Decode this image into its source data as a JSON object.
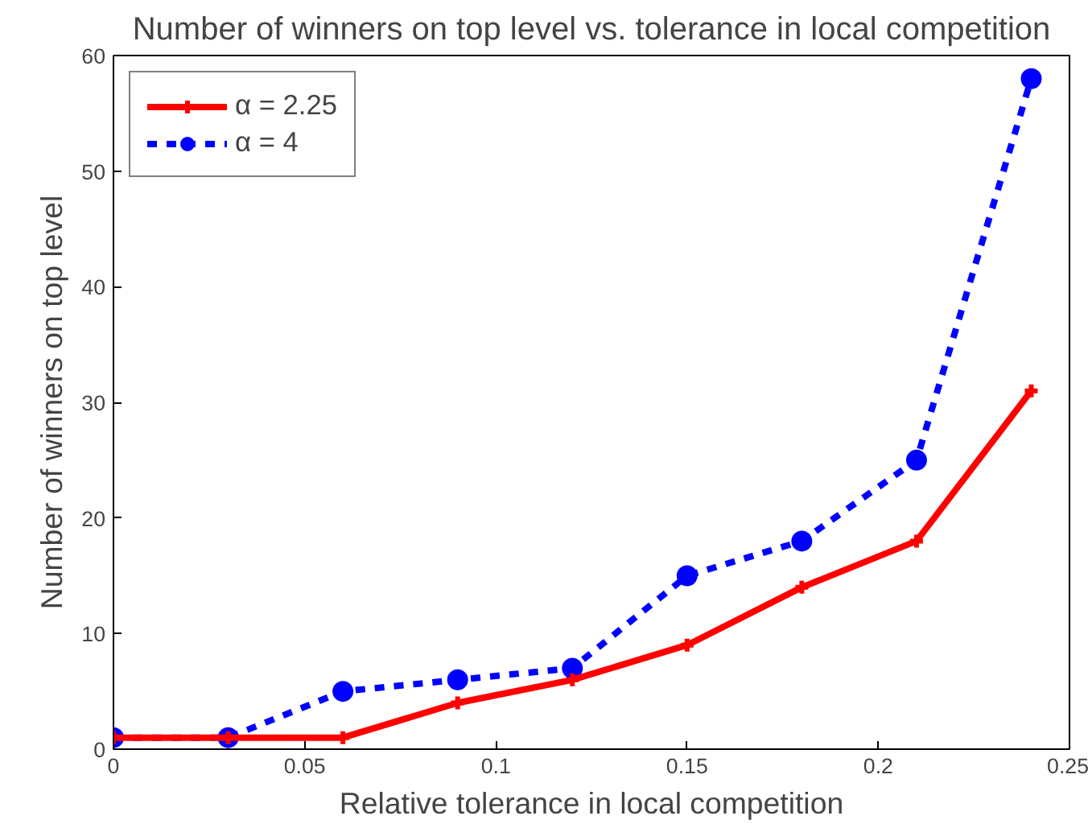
{
  "chart_data": {
    "type": "line",
    "title": "Number of winners on top level vs. tolerance in local competition",
    "xlabel": "Relative tolerance in local competition",
    "ylabel": "Number of winners on top level",
    "x": [
      0,
      0.03,
      0.06,
      0.09,
      0.12,
      0.15,
      0.18,
      0.21,
      0.24
    ],
    "series": [
      {
        "name": "α = 2.25",
        "color": "#ff0000",
        "values": [
          1,
          1,
          1,
          4,
          6,
          9,
          14,
          18,
          31
        ],
        "marker": "cross",
        "line_style": "solid"
      },
      {
        "name": "α = 4",
        "color": "#0000ff",
        "values": [
          1,
          1,
          5,
          6,
          7,
          15,
          18,
          25,
          58
        ],
        "marker": "circle",
        "line_style": "dashed"
      }
    ],
    "xlim": [
      0,
      0.25
    ],
    "xticks": [
      0,
      0.05,
      0.1,
      0.15,
      0.2,
      0.25
    ],
    "ylim": [
      0,
      60
    ],
    "yticks": [
      0,
      10,
      20,
      30,
      40,
      50,
      60
    ],
    "grid": false,
    "legend": "top left"
  }
}
